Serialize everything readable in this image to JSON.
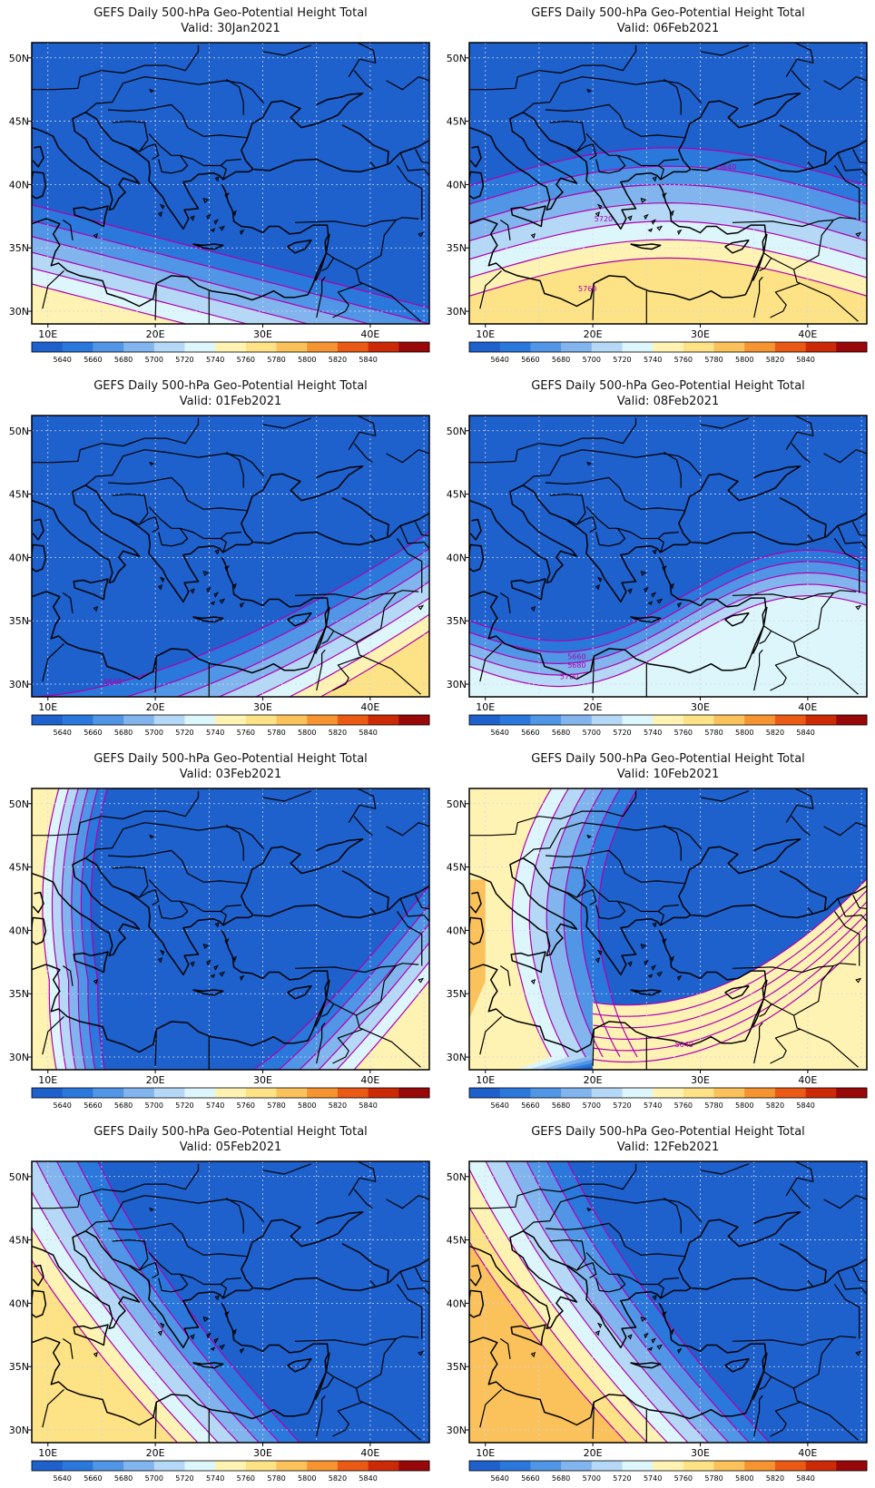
{
  "figure": {
    "panel_title": "GEFS Daily 500-hPa Geo-Potential Height Total",
    "valid_prefix": "Valid:",
    "colorbar": {
      "levels": [
        5640,
        5660,
        5680,
        5700,
        5720,
        5740,
        5760,
        5780,
        5800,
        5820,
        5840
      ],
      "colors": [
        "#1e60cc",
        "#2a78dc",
        "#5095e6",
        "#82b4ee",
        "#b4d8f6",
        "#ddf6fb",
        "#fff3b3",
        "#fde286",
        "#fbc15a",
        "#f59430",
        "#ea5a14",
        "#cc2a06",
        "#980808"
      ]
    },
    "lon_ticks": [
      "10E",
      "20E",
      "30E",
      "40E"
    ],
    "lat_ticks": [
      "50N",
      "45N",
      "40N",
      "35N",
      "30N"
    ],
    "coast_color": "#000000",
    "contour_color": "#b000b0",
    "grid_color": "#cfd8e4"
  },
  "panels": [
    {
      "date": "30Jan2021",
      "labels": []
    },
    {
      "date": "06Feb2021",
      "labels": [
        "5640",
        "5720",
        "5760"
      ]
    },
    {
      "date": "01Feb2021",
      "labels": [
        "5640"
      ]
    },
    {
      "date": "08Feb2021",
      "labels": [
        "5660",
        "5680",
        "5700"
      ]
    },
    {
      "date": "03Feb2021",
      "labels": []
    },
    {
      "date": "10Feb2021",
      "labels": [
        "5640"
      ]
    },
    {
      "date": "05Feb2021",
      "labels": []
    },
    {
      "date": "12Feb2021",
      "labels": []
    }
  ]
}
